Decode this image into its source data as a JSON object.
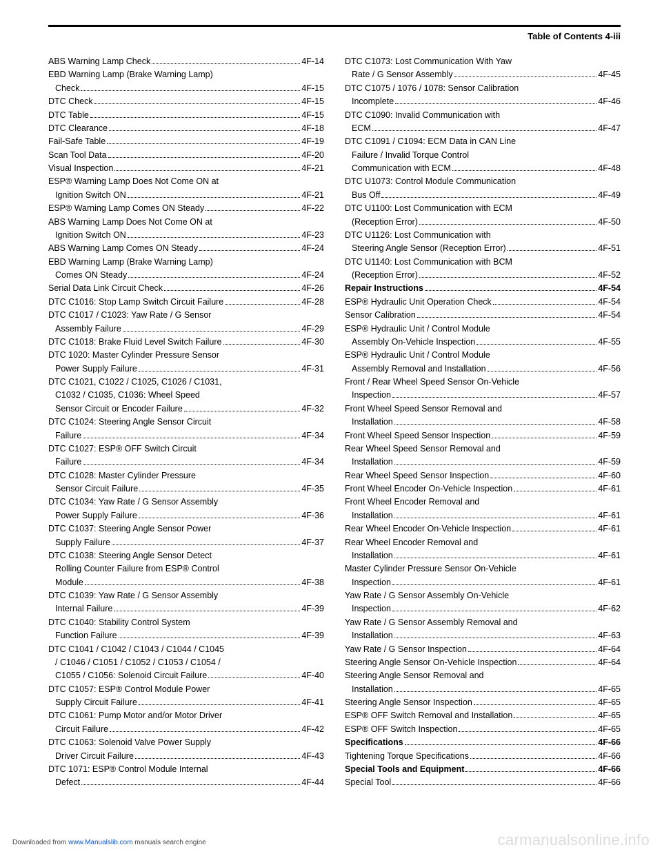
{
  "header": {
    "title": "Table of Contents   4-iii"
  },
  "left": [
    {
      "t": "single",
      "label": "ABS Warning Lamp Check",
      "page": "4F-14"
    },
    {
      "t": "multi",
      "lines": [
        "EBD Warning Lamp (Brake Warning Lamp)"
      ],
      "last": "Check",
      "page": "4F-15",
      "indent": true
    },
    {
      "t": "single",
      "label": "DTC Check",
      "page": "4F-15"
    },
    {
      "t": "single",
      "label": "DTC Table",
      "page": "4F-15"
    },
    {
      "t": "single",
      "label": "DTC Clearance",
      "page": "4F-18"
    },
    {
      "t": "single",
      "label": "Fail-Safe Table",
      "page": "4F-19"
    },
    {
      "t": "single",
      "label": "Scan Tool Data",
      "page": "4F-20"
    },
    {
      "t": "single",
      "label": "Visual Inspection",
      "page": "4F-21"
    },
    {
      "t": "multi",
      "lines": [
        "ESP® Warning Lamp Does Not Come ON at"
      ],
      "last": "Ignition Switch ON",
      "page": "4F-21",
      "indent": true
    },
    {
      "t": "single",
      "label": "ESP® Warning Lamp Comes ON Steady",
      "page": "4F-22"
    },
    {
      "t": "multi",
      "lines": [
        "ABS Warning Lamp Does Not Come ON at"
      ],
      "last": "Ignition Switch ON",
      "page": "4F-23",
      "indent": true
    },
    {
      "t": "single",
      "label": "ABS Warning Lamp Comes ON Steady",
      "page": "4F-24"
    },
    {
      "t": "multi",
      "lines": [
        "EBD Warning Lamp (Brake Warning Lamp)"
      ],
      "last": "Comes ON Steady",
      "page": "4F-24",
      "indent": true
    },
    {
      "t": "single",
      "label": "Serial Data Link Circuit Check",
      "page": "4F-26"
    },
    {
      "t": "single",
      "label": "DTC C1016: Stop Lamp Switch Circuit Failure",
      "page": "4F-28"
    },
    {
      "t": "multi",
      "lines": [
        "DTC C1017 / C1023: Yaw Rate / G Sensor"
      ],
      "last": "Assembly Failure",
      "page": "4F-29",
      "indent": true
    },
    {
      "t": "single",
      "label": "DTC C1018: Brake Fluid Level Switch Failure",
      "page": "4F-30"
    },
    {
      "t": "multi",
      "lines": [
        "DTC 1020: Master Cylinder Pressure Sensor"
      ],
      "last": "Power Supply Failure",
      "page": "4F-31",
      "indent": true
    },
    {
      "t": "multi",
      "lines": [
        "DTC C1021, C1022 / C1025, C1026 / C1031,",
        "C1032 / C1035, C1036: Wheel Speed"
      ],
      "last": "Sensor Circuit or Encoder Failure",
      "page": "4F-32",
      "indent": true,
      "contIndent": true
    },
    {
      "t": "multi",
      "lines": [
        "DTC C1024: Steering Angle Sensor Circuit"
      ],
      "last": "Failure",
      "page": "4F-34",
      "indent": true
    },
    {
      "t": "multi",
      "lines": [
        "DTC C1027: ESP® OFF Switch Circuit"
      ],
      "last": "Failure",
      "page": "4F-34",
      "indent": true
    },
    {
      "t": "multi",
      "lines": [
        "DTC C1028: Master Cylinder Pressure"
      ],
      "last": "Sensor Circuit Failure",
      "page": "4F-35",
      "indent": true
    },
    {
      "t": "multi",
      "lines": [
        "DTC C1034: Yaw Rate / G Sensor Assembly"
      ],
      "last": "Power Supply Failure",
      "page": "4F-36",
      "indent": true
    },
    {
      "t": "multi",
      "lines": [
        "DTC C1037: Steering Angle Sensor Power"
      ],
      "last": "Supply Failure",
      "page": "4F-37",
      "indent": true
    },
    {
      "t": "multi",
      "lines": [
        "DTC C1038: Steering Angle Sensor Detect",
        "Rolling Counter Failure from ESP® Control"
      ],
      "last": "Module",
      "page": "4F-38",
      "indent": true,
      "contIndent": true
    },
    {
      "t": "multi",
      "lines": [
        "DTC C1039: Yaw Rate / G Sensor Assembly"
      ],
      "last": "Internal Failure",
      "page": "4F-39",
      "indent": true
    },
    {
      "t": "multi",
      "lines": [
        "DTC C1040: Stability Control System"
      ],
      "last": "Function Failure",
      "page": "4F-39",
      "indent": true
    },
    {
      "t": "multi",
      "lines": [
        "DTC C1041 / C1042 / C1043 / C1044 / C1045",
        " / C1046 / C1051 / C1052 / C1053 / C1054 /"
      ],
      "last": "C1055 / C1056: Solenoid Circuit Failure",
      "page": "4F-40",
      "indent": true,
      "contIndent": true
    },
    {
      "t": "multi",
      "lines": [
        "DTC C1057: ESP® Control Module Power"
      ],
      "last": "Supply Circuit Failure",
      "page": "4F-41",
      "indent": true
    },
    {
      "t": "multi",
      "lines": [
        "DTC C1061: Pump Motor and/or Motor Driver"
      ],
      "last": "Circuit Failure",
      "page": "4F-42",
      "indent": true
    },
    {
      "t": "multi",
      "lines": [
        "DTC C1063: Solenoid Valve Power Supply"
      ],
      "last": "Driver Circuit Failure",
      "page": "4F-43",
      "indent": true
    },
    {
      "t": "multi",
      "lines": [
        "DTC 1071: ESP® Control Module Internal"
      ],
      "last": "Defect",
      "page": "4F-44",
      "indent": true
    }
  ],
  "right": [
    {
      "t": "multi",
      "lines": [
        "DTC C1073: Lost Communication With Yaw"
      ],
      "last": "Rate / G Sensor Assembly",
      "page": "4F-45",
      "indent": true
    },
    {
      "t": "multi",
      "lines": [
        "DTC C1075 / 1076 / 1078: Sensor Calibration"
      ],
      "last": "Incomplete",
      "page": "4F-46",
      "indent": true
    },
    {
      "t": "multi",
      "lines": [
        "DTC C1090: Invalid Communication with"
      ],
      "last": "ECM",
      "page": "4F-47",
      "indent": true
    },
    {
      "t": "multi",
      "lines": [
        "DTC C1091 / C1094: ECM Data in CAN Line",
        "Failure / Invalid Torque Control"
      ],
      "last": "Communication with ECM",
      "page": "4F-48",
      "indent": true,
      "contIndent": true
    },
    {
      "t": "multi",
      "lines": [
        "DTC U1073: Control Module Communication"
      ],
      "last": "Bus Off",
      "page": "4F-49",
      "indent": true
    },
    {
      "t": "multi",
      "lines": [
        "DTC U1100: Lost Communication with ECM"
      ],
      "last": "(Reception Error)",
      "page": "4F-50",
      "indent": true
    },
    {
      "t": "multi",
      "lines": [
        "DTC U1126: Lost Communication with"
      ],
      "last": "Steering Angle Sensor (Reception Error)",
      "page": "4F-51",
      "indent": true
    },
    {
      "t": "multi",
      "lines": [
        "DTC U1140: Lost Communication with BCM"
      ],
      "last": "(Reception Error)",
      "page": "4F-52",
      "indent": true
    },
    {
      "t": "single",
      "label": "Repair Instructions",
      "page": "4F-54",
      "bold": true
    },
    {
      "t": "single",
      "label": "ESP® Hydraulic Unit Operation Check",
      "page": "4F-54"
    },
    {
      "t": "single",
      "label": "Sensor Calibration",
      "page": "4F-54"
    },
    {
      "t": "multi",
      "lines": [
        "ESP® Hydraulic Unit / Control Module"
      ],
      "last": "Assembly On-Vehicle Inspection",
      "page": "4F-55",
      "indent": true
    },
    {
      "t": "multi",
      "lines": [
        "ESP® Hydraulic Unit / Control Module"
      ],
      "last": "Assembly Removal and Installation",
      "page": "4F-56",
      "indent": true
    },
    {
      "t": "multi",
      "lines": [
        "Front / Rear Wheel Speed Sensor On-Vehicle"
      ],
      "last": "Inspection",
      "page": "4F-57",
      "indent": true
    },
    {
      "t": "multi",
      "lines": [
        "Front Wheel Speed Sensor Removal and"
      ],
      "last": "Installation",
      "page": "4F-58",
      "indent": true
    },
    {
      "t": "single",
      "label": "Front Wheel Speed Sensor Inspection",
      "page": "4F-59"
    },
    {
      "t": "multi",
      "lines": [
        "Rear Wheel Speed Sensor Removal and"
      ],
      "last": "Installation",
      "page": "4F-59",
      "indent": true
    },
    {
      "t": "single",
      "label": "Rear Wheel Speed Sensor Inspection",
      "page": "4F-60"
    },
    {
      "t": "single",
      "label": "Front Wheel Encoder On-Vehicle Inspection",
      "page": "4F-61"
    },
    {
      "t": "multi",
      "lines": [
        "Front Wheel Encoder Removal and"
      ],
      "last": "Installation",
      "page": "4F-61",
      "indent": true
    },
    {
      "t": "single",
      "label": "Rear Wheel Encoder On-Vehicle Inspection",
      "page": "4F-61"
    },
    {
      "t": "multi",
      "lines": [
        "Rear Wheel Encoder Removal and"
      ],
      "last": "Installation",
      "page": "4F-61",
      "indent": true
    },
    {
      "t": "multi",
      "lines": [
        "Master Cylinder Pressure Sensor On-Vehicle"
      ],
      "last": "Inspection",
      "page": "4F-61",
      "indent": true
    },
    {
      "t": "multi",
      "lines": [
        "Yaw Rate / G Sensor Assembly On-Vehicle"
      ],
      "last": "Inspection",
      "page": "4F-62",
      "indent": true
    },
    {
      "t": "multi",
      "lines": [
        "Yaw Rate / G Sensor Assembly Removal and"
      ],
      "last": "Installation",
      "page": "4F-63",
      "indent": true
    },
    {
      "t": "single",
      "label": "Yaw Rate / G Sensor Inspection",
      "page": "4F-64"
    },
    {
      "t": "single",
      "label": "Steering Angle Sensor On-Vehicle Inspection",
      "page": "4F-64"
    },
    {
      "t": "multi",
      "lines": [
        "Steering Angle Sensor Removal and"
      ],
      "last": "Installation",
      "page": "4F-65",
      "indent": true
    },
    {
      "t": "single",
      "label": "Steering Angle Sensor Inspection",
      "page": "4F-65"
    },
    {
      "t": "single",
      "label": "ESP® OFF Switch Removal and Installation",
      "page": "4F-65"
    },
    {
      "t": "single",
      "label": "ESP® OFF Switch Inspection",
      "page": "4F-65"
    },
    {
      "t": "single",
      "label": "Specifications",
      "page": "4F-66",
      "bold": true
    },
    {
      "t": "single",
      "label": "Tightening Torque Specifications",
      "page": "4F-66"
    },
    {
      "t": "single",
      "label": "Special Tools and Equipment",
      "page": "4F-66",
      "bold": true
    },
    {
      "t": "single",
      "label": "Special Tool",
      "page": "4F-66"
    }
  ],
  "footer": {
    "prefix": "Downloaded from ",
    "link": "www.Manualslib.com",
    "suffix": " manuals search engine"
  },
  "watermark": "carmanualsonline.info"
}
